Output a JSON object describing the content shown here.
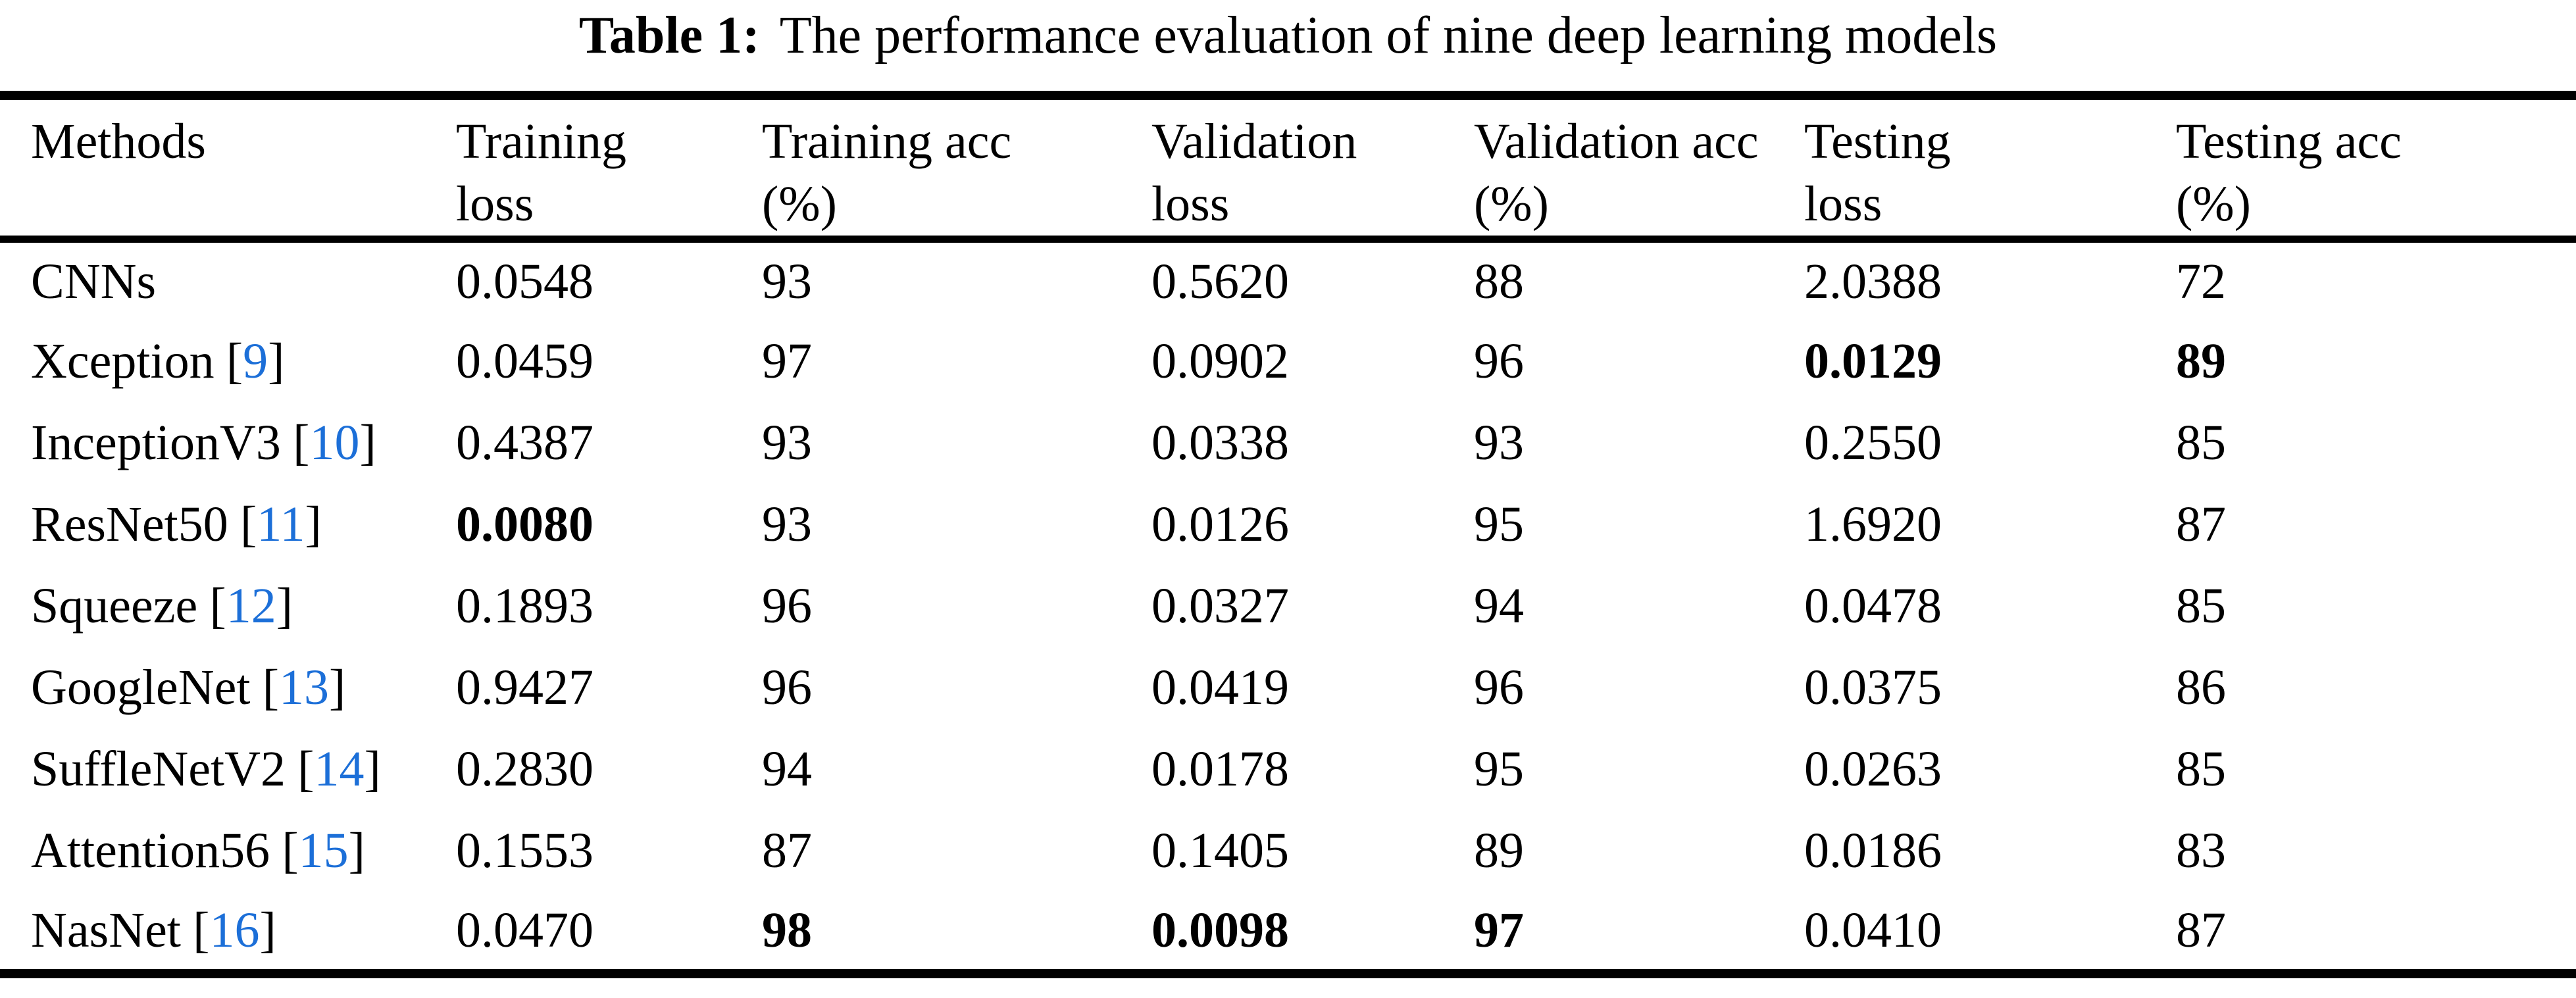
{
  "title": {
    "prefix": "Table 1:",
    "text": "The performance evaluation of nine deep learning models"
  },
  "colors": {
    "citation_blue": "#1c6fd8",
    "text": "#000000",
    "background": "#ffffff"
  },
  "table": {
    "citation_open": "[",
    "citation_close": "]",
    "columns": [
      {
        "line1": "Methods",
        "line2": ""
      },
      {
        "line1": "Training",
        "line2": "loss"
      },
      {
        "line1": "Training acc",
        "line2": "(%)"
      },
      {
        "line1": "Validation",
        "line2": "loss"
      },
      {
        "line1": "Validation acc",
        "line2": "(%)"
      },
      {
        "line1": "Testing",
        "line2": "loss"
      },
      {
        "line1": "Testing acc",
        "line2": "(%)"
      }
    ],
    "rows": [
      {
        "method": {
          "name": "CNNs",
          "ref": ""
        },
        "cells": [
          {
            "text": "0.0548",
            "bold": false
          },
          {
            "text": "93",
            "bold": false
          },
          {
            "text": "0.5620",
            "bold": false
          },
          {
            "text": "88",
            "bold": false
          },
          {
            "text": "2.0388",
            "bold": false
          },
          {
            "text": "72",
            "bold": false
          }
        ]
      },
      {
        "method": {
          "name": "Xception",
          "ref": "9"
        },
        "cells": [
          {
            "text": "0.0459",
            "bold": false
          },
          {
            "text": "97",
            "bold": false
          },
          {
            "text": "0.0902",
            "bold": false
          },
          {
            "text": "96",
            "bold": false
          },
          {
            "text": "0.0129",
            "bold": true
          },
          {
            "text": "89",
            "bold": true
          }
        ]
      },
      {
        "method": {
          "name": "InceptionV3",
          "ref": "10"
        },
        "cells": [
          {
            "text": "0.4387",
            "bold": false
          },
          {
            "text": "93",
            "bold": false
          },
          {
            "text": "0.0338",
            "bold": false
          },
          {
            "text": "93",
            "bold": false
          },
          {
            "text": "0.2550",
            "bold": false
          },
          {
            "text": "85",
            "bold": false
          }
        ]
      },
      {
        "method": {
          "name": "ResNet50",
          "ref": "11"
        },
        "cells": [
          {
            "text": "0.0080",
            "bold": true
          },
          {
            "text": "93",
            "bold": false
          },
          {
            "text": "0.0126",
            "bold": false
          },
          {
            "text": "95",
            "bold": false
          },
          {
            "text": "1.6920",
            "bold": false
          },
          {
            "text": "87",
            "bold": false
          }
        ]
      },
      {
        "method": {
          "name": "Squeeze",
          "ref": "12"
        },
        "cells": [
          {
            "text": "0.1893",
            "bold": false
          },
          {
            "text": "96",
            "bold": false
          },
          {
            "text": "0.0327",
            "bold": false
          },
          {
            "text": "94",
            "bold": false
          },
          {
            "text": "0.0478",
            "bold": false
          },
          {
            "text": "85",
            "bold": false
          }
        ]
      },
      {
        "method": {
          "name": "GoogleNet",
          "ref": "13"
        },
        "cells": [
          {
            "text": "0.9427",
            "bold": false
          },
          {
            "text": "96",
            "bold": false
          },
          {
            "text": "0.0419",
            "bold": false
          },
          {
            "text": "96",
            "bold": false
          },
          {
            "text": "0.0375",
            "bold": false
          },
          {
            "text": "86",
            "bold": false
          }
        ]
      },
      {
        "method": {
          "name": "SuffleNetV2",
          "ref": "14"
        },
        "cells": [
          {
            "text": "0.2830",
            "bold": false
          },
          {
            "text": "94",
            "bold": false
          },
          {
            "text": "0.0178",
            "bold": false
          },
          {
            "text": "95",
            "bold": false
          },
          {
            "text": "0.0263",
            "bold": false
          },
          {
            "text": "85",
            "bold": false
          }
        ]
      },
      {
        "method": {
          "name": "Attention56",
          "ref": "15"
        },
        "cells": [
          {
            "text": "0.1553",
            "bold": false
          },
          {
            "text": "87",
            "bold": false
          },
          {
            "text": "0.1405",
            "bold": false
          },
          {
            "text": "89",
            "bold": false
          },
          {
            "text": "0.0186",
            "bold": false
          },
          {
            "text": "83",
            "bold": false
          }
        ]
      },
      {
        "method": {
          "name": "NasNet",
          "ref": "16"
        },
        "cells": [
          {
            "text": "0.0470",
            "bold": false
          },
          {
            "text": "98",
            "bold": true
          },
          {
            "text": "0.0098",
            "bold": true
          },
          {
            "text": "97",
            "bold": true
          },
          {
            "text": "0.0410",
            "bold": false
          },
          {
            "text": "87",
            "bold": false
          }
        ]
      }
    ]
  }
}
